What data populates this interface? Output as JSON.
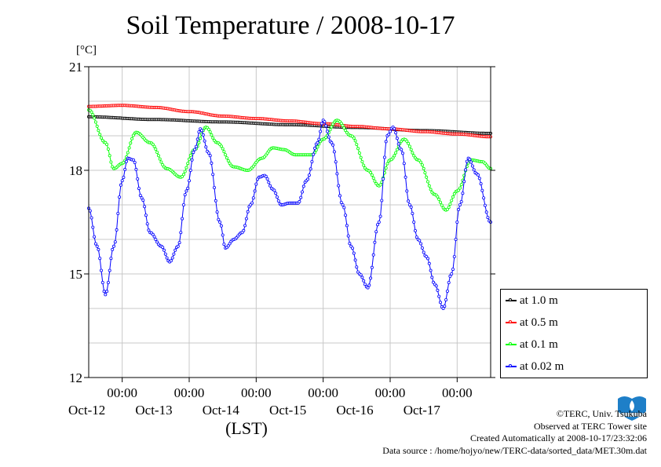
{
  "title": "Soil Temperature / 2008-10-17",
  "unit": "[°C]",
  "chart_data": {
    "type": "line",
    "title": "Soil Temperature / 2008-10-17",
    "ylabel": "[°C]",
    "xlabel": "(LST)",
    "ylim": [
      12,
      21
    ],
    "yticks": [
      12,
      15,
      18,
      21
    ],
    "xlim_hours_from_oct11_12lst": [
      0,
      144
    ],
    "xticks": [
      {
        "h": 12,
        "time": "00:00",
        "date": "Oct-12"
      },
      {
        "h": 36,
        "time": "00:00",
        "date": "Oct-13"
      },
      {
        "h": 60,
        "time": "00:00",
        "date": "Oct-14"
      },
      {
        "h": 84,
        "time": "00:00",
        "date": "Oct-15"
      },
      {
        "h": 108,
        "time": "00:00",
        "date": "Oct-16"
      },
      {
        "h": 132,
        "time": "00:00",
        "date": "Oct-17"
      }
    ],
    "grid": true,
    "legend_position": "right",
    "series": [
      {
        "name": "at 1.0 m",
        "color": "#000000",
        "points": [
          [
            0,
            19.55
          ],
          [
            24,
            19.47
          ],
          [
            48,
            19.4
          ],
          [
            72,
            19.32
          ],
          [
            96,
            19.24
          ],
          [
            120,
            19.15
          ],
          [
            144,
            19.07
          ]
        ]
      },
      {
        "name": "at 0.5 m",
        "color": "#ff0000",
        "points": [
          [
            0,
            19.85
          ],
          [
            12,
            19.88
          ],
          [
            24,
            19.82
          ],
          [
            36,
            19.7
          ],
          [
            48,
            19.57
          ],
          [
            60,
            19.5
          ],
          [
            72,
            19.43
          ],
          [
            84,
            19.35
          ],
          [
            96,
            19.27
          ],
          [
            108,
            19.2
          ],
          [
            120,
            19.12
          ],
          [
            132,
            19.05
          ],
          [
            144,
            18.97
          ]
        ]
      },
      {
        "name": "at 0.1 m",
        "color": "#00ff00",
        "points": [
          [
            0,
            19.75
          ],
          [
            6,
            18.8
          ],
          [
            9,
            18.05
          ],
          [
            12,
            18.2
          ],
          [
            17,
            19.1
          ],
          [
            22,
            18.8
          ],
          [
            28,
            18.05
          ],
          [
            33,
            17.8
          ],
          [
            38,
            18.6
          ],
          [
            42,
            19.25
          ],
          [
            46,
            18.8
          ],
          [
            52,
            18.1
          ],
          [
            57,
            18.0
          ],
          [
            62,
            18.35
          ],
          [
            66,
            18.65
          ],
          [
            70,
            18.6
          ],
          [
            74,
            18.45
          ],
          [
            80,
            18.45
          ],
          [
            84,
            18.9
          ],
          [
            89,
            19.45
          ],
          [
            94,
            19.0
          ],
          [
            100,
            18.0
          ],
          [
            104,
            17.55
          ],
          [
            108,
            18.3
          ],
          [
            113,
            18.9
          ],
          [
            118,
            18.3
          ],
          [
            124,
            17.3
          ],
          [
            128,
            16.85
          ],
          [
            132,
            17.4
          ],
          [
            137,
            18.3
          ],
          [
            141,
            18.25
          ],
          [
            144,
            18.05
          ]
        ]
      },
      {
        "name": "at 0.02 m",
        "color": "#0000ff",
        "points": [
          [
            0,
            16.9
          ],
          [
            3,
            15.8
          ],
          [
            6,
            14.4
          ],
          [
            9,
            15.8
          ],
          [
            12,
            17.7
          ],
          [
            14,
            18.35
          ],
          [
            16,
            18.3
          ],
          [
            19,
            17.2
          ],
          [
            22,
            16.2
          ],
          [
            26,
            15.8
          ],
          [
            29,
            15.35
          ],
          [
            32,
            15.8
          ],
          [
            35,
            17.4
          ],
          [
            38,
            18.6
          ],
          [
            40,
            19.2
          ],
          [
            43,
            18.5
          ],
          [
            47,
            16.5
          ],
          [
            49,
            15.75
          ],
          [
            52,
            16.0
          ],
          [
            55,
            16.2
          ],
          [
            58,
            17.0
          ],
          [
            61,
            17.8
          ],
          [
            63,
            17.85
          ],
          [
            66,
            17.45
          ],
          [
            69,
            17.0
          ],
          [
            72,
            17.05
          ],
          [
            75,
            17.05
          ],
          [
            78,
            17.7
          ],
          [
            82,
            18.8
          ],
          [
            84,
            19.45
          ],
          [
            87,
            18.8
          ],
          [
            91,
            17.0
          ],
          [
            94,
            15.8
          ],
          [
            97,
            15.0
          ],
          [
            100,
            14.6
          ],
          [
            104,
            16.5
          ],
          [
            107,
            19.0
          ],
          [
            109,
            19.25
          ],
          [
            112,
            18.6
          ],
          [
            115,
            17.0
          ],
          [
            118,
            16.0
          ],
          [
            121,
            15.5
          ],
          [
            124,
            14.7
          ],
          [
            127,
            14.0
          ],
          [
            130,
            15.0
          ],
          [
            133,
            17.0
          ],
          [
            136,
            18.35
          ],
          [
            139,
            17.9
          ],
          [
            144,
            16.5
          ]
        ]
      }
    ]
  },
  "legend": {
    "items": [
      "at 1.0 m",
      "at 0.5 m",
      "at 0.1 m",
      "at 0.02 m"
    ],
    "colors": [
      "#000000",
      "#ff0000",
      "#00ff00",
      "#0000ff"
    ]
  },
  "credits": {
    "copyright": "©TERC, Univ. Tsukuba",
    "site": "Observed at TERC Tower site",
    "created": "Created Automatically at 2008-10-17/23:32:06",
    "source": "Data source : /home/hojyo/new/TERC-data/sorted_data/MET.30m.dat"
  }
}
